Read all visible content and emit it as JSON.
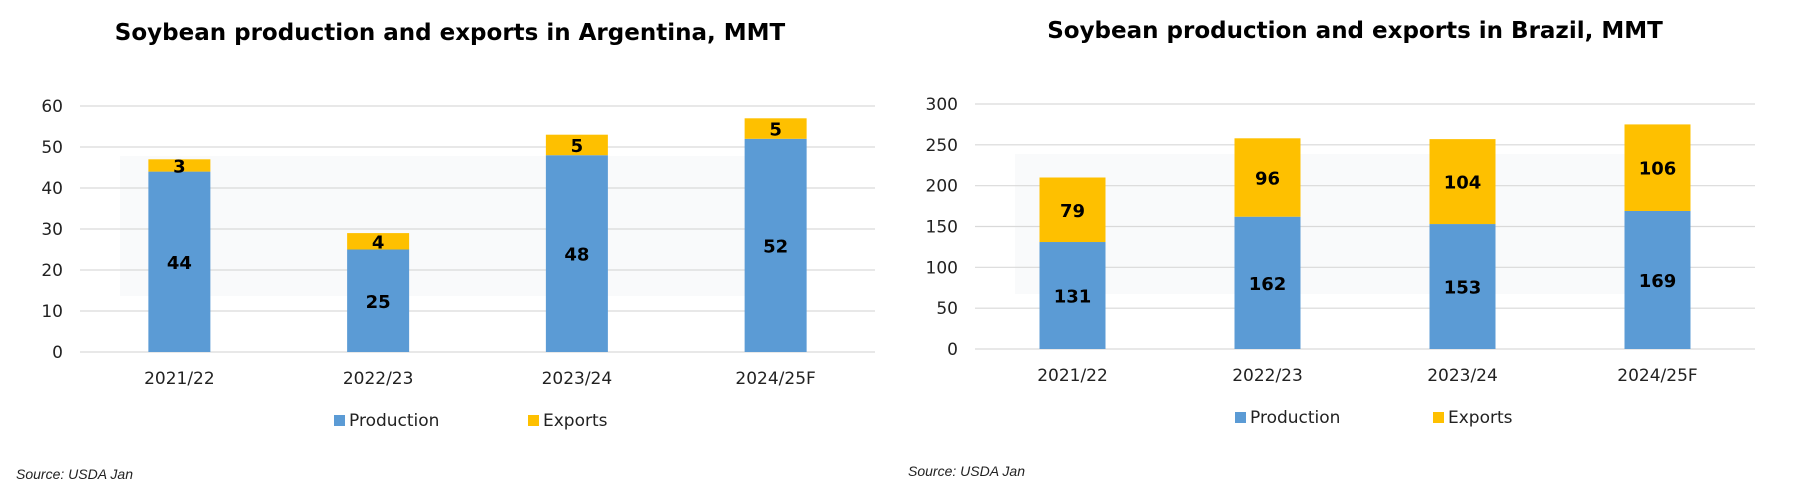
{
  "colors": {
    "production": "#5b9bd5",
    "exports": "#fec000",
    "grid": "#d9d9d9",
    "text": "#000000"
  },
  "chart_data": [
    {
      "type": "bar",
      "stacked": true,
      "title": "Soybean production and exports in Argentina, MMT",
      "categories": [
        "2021/22",
        "2022/23",
        "2023/24",
        "2024/25F"
      ],
      "series": [
        {
          "name": "Production",
          "values": [
            44,
            25,
            48,
            52
          ]
        },
        {
          "name": "Exports",
          "values": [
            3,
            4,
            5,
            5
          ]
        }
      ],
      "ylim": [
        0,
        60
      ],
      "yticks": [
        0,
        10,
        20,
        30,
        40,
        50,
        60
      ],
      "grid": true,
      "legend": "bottom",
      "source": "Source: USDA Jan"
    },
    {
      "type": "bar",
      "stacked": true,
      "title": "Soybean production and exports in Brazil, MMT",
      "categories": [
        "2021/22",
        "2022/23",
        "2023/24",
        "2024/25F"
      ],
      "series": [
        {
          "name": "Production",
          "values": [
            131,
            162,
            153,
            169
          ]
        },
        {
          "name": "Exports",
          "values": [
            79,
            96,
            104,
            106
          ]
        }
      ],
      "ylim": [
        0,
        300
      ],
      "yticks": [
        0,
        50,
        100,
        150,
        200,
        250,
        300
      ],
      "grid": true,
      "legend": "bottom",
      "source": "Source: USDA Jan"
    }
  ]
}
